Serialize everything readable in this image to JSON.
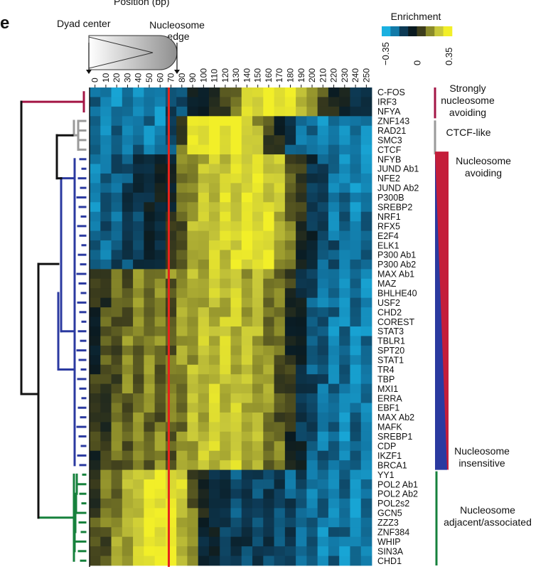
{
  "panel_label": "e",
  "axis_title": "Position (bp)",
  "dyad_label": "Dyad center",
  "edge_label": "Nucleosome edge",
  "colorbar": {
    "title": "Enrichment",
    "ticks": [
      "−0.35",
      "0",
      "0.35"
    ],
    "colors": [
      "#1ab0e0",
      "#127aa8",
      "#0d3a55",
      "#0a1a20",
      "#3d3d1c",
      "#8a8a2a",
      "#c8c83a",
      "#f2ef28"
    ]
  },
  "groups": [
    {
      "label": "Strongly nucleosome avoiding",
      "color": "#a31545"
    },
    {
      "label": "CTCF-like",
      "color": "#9a9a9a"
    },
    {
      "label": "Nucleosome avoiding",
      "color": "#c41e3a"
    },
    {
      "label": "Nucleosome insensitive",
      "color": "#2b3aa0"
    },
    {
      "label": "Nucleosome adjacent/associated",
      "color": "#16813c"
    }
  ],
  "chart_data": {
    "type": "heatmap",
    "title": "Enrichment",
    "xlabel": "Position (bp)",
    "ylabel": "",
    "x": [
      0,
      10,
      20,
      30,
      40,
      50,
      60,
      70,
      80,
      90,
      100,
      110,
      120,
      130,
      140,
      150,
      160,
      170,
      180,
      190,
      200,
      210,
      220,
      230,
      240,
      250
    ],
    "value_range": [
      -0.35,
      0.35
    ],
    "marker_position": 73,
    "rows": [
      {
        "name": "C-FOS",
        "group": 0,
        "profile": "A"
      },
      {
        "name": "IRF3",
        "group": 0,
        "profile": "A"
      },
      {
        "name": "NFYA",
        "group": 0,
        "profile": "A"
      },
      {
        "name": "ZNF143",
        "group": 1,
        "profile": "C"
      },
      {
        "name": "RAD21",
        "group": 1,
        "profile": "C"
      },
      {
        "name": "SMC3",
        "group": 1,
        "profile": "C"
      },
      {
        "name": "CTCF",
        "group": 1,
        "profile": "C"
      },
      {
        "name": "NFYB",
        "group": 2,
        "profile": "B"
      },
      {
        "name": "JUND Ab1",
        "group": 2,
        "profile": "B"
      },
      {
        "name": "NFE2",
        "group": 2,
        "profile": "B"
      },
      {
        "name": "JUND Ab2",
        "group": 2,
        "profile": "B"
      },
      {
        "name": "P300B",
        "group": 2,
        "profile": "B"
      },
      {
        "name": "SREBP2",
        "group": 2,
        "profile": "B"
      },
      {
        "name": "NRF1",
        "group": 2,
        "profile": "B"
      },
      {
        "name": "RFX5",
        "group": 2,
        "profile": "B"
      },
      {
        "name": "E2F4",
        "group": 2,
        "profile": "B"
      },
      {
        "name": "ELK1",
        "group": 2,
        "profile": "B"
      },
      {
        "name": "P300 Ab1",
        "group": 2,
        "profile": "B"
      },
      {
        "name": "P300 Ab2",
        "group": 2,
        "profile": "B"
      },
      {
        "name": "MAX Ab1",
        "group": 2,
        "profile": "D"
      },
      {
        "name": "MAZ",
        "group": 2,
        "profile": "D"
      },
      {
        "name": "BHLHE40",
        "group": 2,
        "profile": "D"
      },
      {
        "name": "USF2",
        "group": 2,
        "profile": "D"
      },
      {
        "name": "CHD2",
        "group": 2,
        "profile": "D"
      },
      {
        "name": "COREST",
        "group": 2,
        "profile": "D"
      },
      {
        "name": "STAT3",
        "group": 2,
        "profile": "D"
      },
      {
        "name": "TBLR1",
        "group": 2,
        "profile": "D"
      },
      {
        "name": "SPT20",
        "group": 2,
        "profile": "D"
      },
      {
        "name": "STAT1",
        "group": 2,
        "profile": "D"
      },
      {
        "name": "TR4",
        "group": 3,
        "profile": "D"
      },
      {
        "name": "TBP",
        "group": 3,
        "profile": "D"
      },
      {
        "name": "MXI1",
        "group": 3,
        "profile": "D"
      },
      {
        "name": "ERRA",
        "group": 3,
        "profile": "D"
      },
      {
        "name": "EBF1",
        "group": 3,
        "profile": "D"
      },
      {
        "name": "MAX Ab2",
        "group": 3,
        "profile": "D"
      },
      {
        "name": "MAFK",
        "group": 3,
        "profile": "D"
      },
      {
        "name": "SREBP1",
        "group": 3,
        "profile": "D"
      },
      {
        "name": "CDP",
        "group": 3,
        "profile": "D"
      },
      {
        "name": "IKZF1",
        "group": 3,
        "profile": "D"
      },
      {
        "name": "BRCA1",
        "group": 3,
        "profile": "D"
      },
      {
        "name": "YY1",
        "group": 4,
        "profile": "E"
      },
      {
        "name": "POL2 Ab1",
        "group": 4,
        "profile": "E"
      },
      {
        "name": "POL2 Ab2",
        "group": 4,
        "profile": "E"
      },
      {
        "name": "POL2s2",
        "group": 4,
        "profile": "E"
      },
      {
        "name": "GCN5",
        "group": 4,
        "profile": "E"
      },
      {
        "name": "ZZZ3",
        "group": 4,
        "profile": "E"
      },
      {
        "name": "ZNF384",
        "group": 4,
        "profile": "E"
      },
      {
        "name": "WHIP",
        "group": 4,
        "profile": "E"
      },
      {
        "name": "SIN3A",
        "group": 4,
        "profile": "E"
      },
      {
        "name": "CHD1",
        "group": 4,
        "profile": "E"
      }
    ],
    "profiles": {
      "A": [
        -0.25,
        -0.25,
        -0.25,
        -0.25,
        -0.25,
        -0.25,
        -0.25,
        -0.2,
        -0.15,
        -0.1,
        -0.05,
        0.0,
        0.05,
        0.15,
        0.25,
        0.33,
        0.33,
        0.33,
        0.3,
        0.25,
        0.15,
        0.05,
        0.0,
        -0.05,
        -0.1,
        -0.15
      ],
      "B": [
        -0.25,
        -0.22,
        -0.2,
        -0.15,
        -0.12,
        -0.1,
        -0.08,
        -0.02,
        0.1,
        0.18,
        0.22,
        0.25,
        0.28,
        0.3,
        0.32,
        0.32,
        0.28,
        0.22,
        0.12,
        0.0,
        -0.1,
        -0.18,
        -0.22,
        -0.25,
        -0.25,
        -0.25
      ],
      "C": [
        -0.25,
        -0.25,
        -0.25,
        -0.25,
        -0.25,
        -0.25,
        -0.25,
        -0.2,
        0.1,
        0.3,
        0.35,
        0.35,
        0.35,
        0.35,
        0.3,
        0.2,
        0.05,
        -0.05,
        -0.15,
        -0.2,
        -0.25,
        -0.25,
        -0.25,
        -0.25,
        -0.25,
        -0.25
      ],
      "D": [
        0.0,
        0.05,
        0.1,
        0.12,
        0.12,
        0.12,
        0.12,
        0.12,
        0.15,
        0.2,
        0.22,
        0.25,
        0.25,
        0.25,
        0.22,
        0.2,
        0.15,
        0.1,
        0.0,
        -0.1,
        -0.18,
        -0.22,
        -0.25,
        -0.25,
        -0.25,
        -0.25
      ],
      "E": [
        0.05,
        0.1,
        0.15,
        0.2,
        0.28,
        0.32,
        0.35,
        0.33,
        0.25,
        0.1,
        -0.05,
        -0.1,
        -0.15,
        -0.15,
        -0.15,
        -0.15,
        -0.15,
        -0.15,
        -0.18,
        -0.2,
        -0.22,
        -0.25,
        -0.25,
        -0.25,
        -0.25,
        -0.25
      ]
    }
  }
}
